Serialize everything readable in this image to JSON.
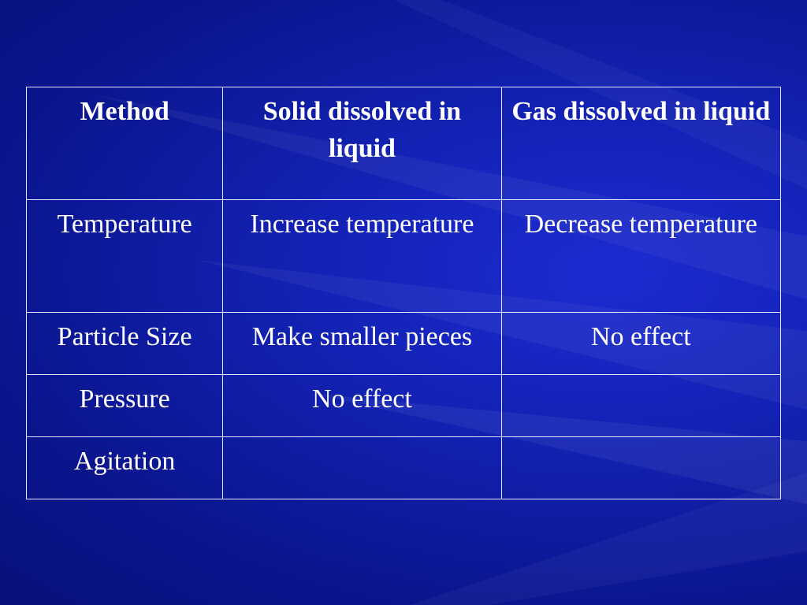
{
  "table": {
    "headers": [
      "Method",
      "Solid dissolved in liquid",
      "Gas dissolved in liquid"
    ],
    "rows": [
      [
        "Temperature",
        "Increase temperature",
        "Decrease temperature"
      ],
      [
        "Particle Size",
        "Make smaller pieces",
        "No effect"
      ],
      [
        "Pressure",
        "No effect",
        ""
      ],
      [
        "Agitation",
        "",
        ""
      ]
    ]
  },
  "colors": {
    "background": "#1322b4",
    "text": "#ffffff",
    "border": "#e6e8ff"
  }
}
